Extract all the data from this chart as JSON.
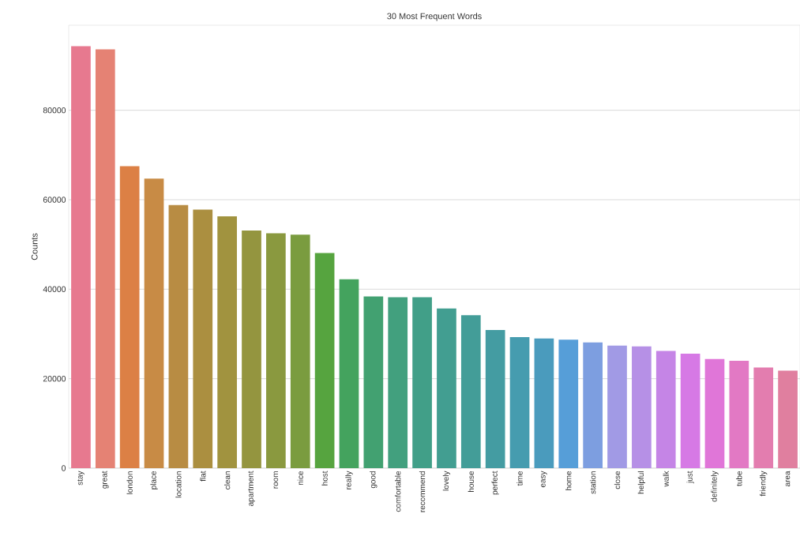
{
  "chart_data": {
    "type": "bar",
    "title": "30 Most Frequent Words",
    "ylabel": "Counts",
    "categories": [
      "stay",
      "great",
      "london",
      "place",
      "location",
      "flat",
      "clean",
      "apartment",
      "room",
      "nice",
      "host",
      "really",
      "good",
      "comfortable",
      "recommend",
      "lovely",
      "house",
      "perfect",
      "time",
      "easy",
      "home",
      "station",
      "close",
      "helpful",
      "walk",
      "just",
      "definitely",
      "tube",
      "friendly",
      "area"
    ],
    "values": [
      94300,
      93600,
      67500,
      64700,
      58800,
      57800,
      56300,
      53100,
      52500,
      52200,
      48100,
      42200,
      38400,
      38200,
      38200,
      35700,
      34200,
      30900,
      29300,
      29000,
      28700,
      28100,
      27400,
      27200,
      26200,
      25600,
      24400,
      24000,
      22500,
      21800
    ],
    "colors": [
      "#e7798f",
      "#e58274",
      "#dc8045",
      "#c88b45",
      "#b88c43",
      "#ab8f40",
      "#a1933f",
      "#94953f",
      "#8a993f",
      "#7a9c3f",
      "#56a43f",
      "#44a35e",
      "#42a171",
      "#42a07e",
      "#419f88",
      "#429e91",
      "#439d98",
      "#449ca2",
      "#469caf",
      "#4a9bbd",
      "#569ed8",
      "#7d9ee0",
      "#a19ae5",
      "#b690e6",
      "#c585e6",
      "#d679e5",
      "#e076d8",
      "#e279c4",
      "#e37daf",
      "#e07f9f"
    ],
    "ylim": [
      0,
      99000
    ],
    "yticks": [
      0,
      20000,
      40000,
      60000,
      80000
    ],
    "grid": "y"
  }
}
